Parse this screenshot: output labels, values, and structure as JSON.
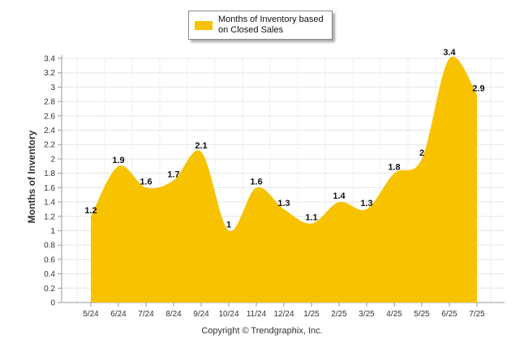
{
  "legend": {
    "label": "Months of Inventory based on Closed Sales",
    "color": "#f7c200"
  },
  "footer": {
    "copyright": "Copyright © Trendgraphix, Inc."
  },
  "chart_data": {
    "type": "area",
    "title": "",
    "xlabel": "",
    "ylabel": "Months of Inventory",
    "categories": [
      "5/24",
      "6/24",
      "7/24",
      "8/24",
      "9/24",
      "10/24",
      "11/24",
      "12/24",
      "1/25",
      "2/25",
      "3/25",
      "4/25",
      "5/25",
      "6/25",
      "7/25"
    ],
    "series": [
      {
        "name": "Months of Inventory based on Closed Sales",
        "values": [
          1.2,
          1.9,
          1.6,
          1.7,
          2.1,
          1,
          1.6,
          1.3,
          1.1,
          1.4,
          1.3,
          1.8,
          2,
          3.4,
          2.9
        ],
        "data_labels": [
          "1.2",
          "1.9",
          "1.6",
          "1.7",
          "2.1",
          "1",
          "1.6",
          "1.3",
          "1.1",
          "1.4",
          "1.3",
          "1.8",
          "2",
          "3.4",
          "2.9"
        ],
        "color": "#f7c200"
      }
    ],
    "ylim": [
      0,
      3.4
    ],
    "yticks": [
      "0",
      "0.2",
      "0.4",
      "0.6",
      "0.8",
      "1",
      "1.2",
      "1.4",
      "1.6",
      "1.8",
      "2",
      "2.2",
      "2.4",
      "2.6",
      "2.8",
      "3",
      "3.2",
      "3.4"
    ],
    "grid": true,
    "legend_position": "top-center"
  }
}
